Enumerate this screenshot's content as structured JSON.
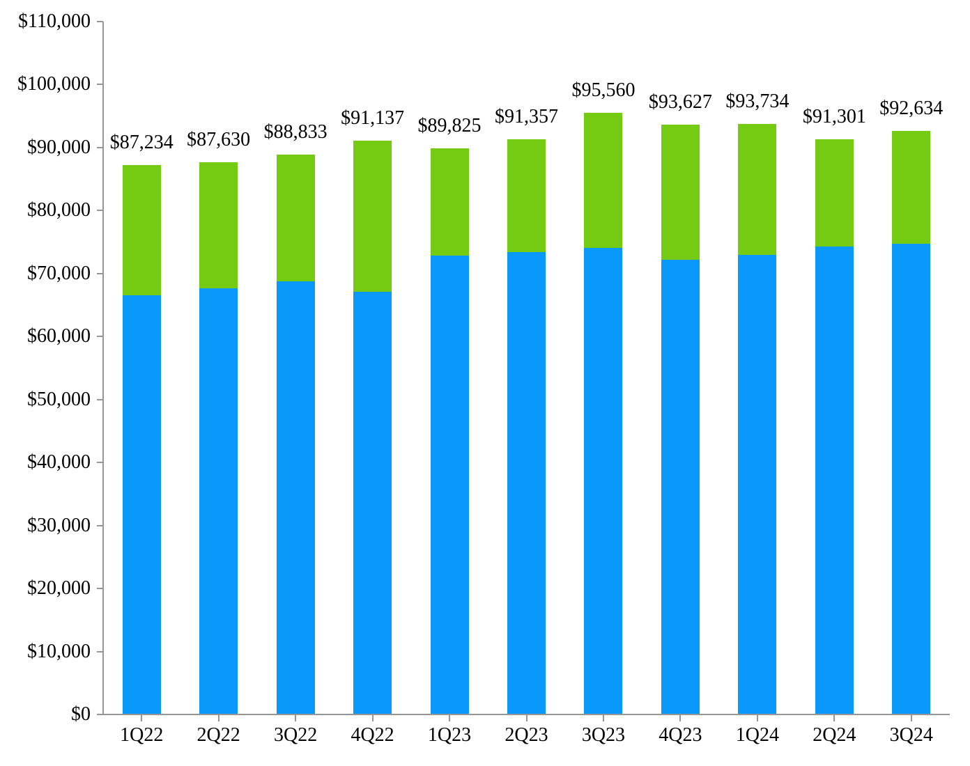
{
  "chart_data": {
    "type": "bar",
    "subtype": "stacked-column",
    "title": "",
    "xlabel": "",
    "ylabel": "",
    "categories": [
      "1Q22",
      "2Q22",
      "3Q22",
      "4Q22",
      "1Q23",
      "2Q23",
      "3Q23",
      "4Q23",
      "1Q24",
      "2Q24",
      "3Q24"
    ],
    "series": [
      {
        "name": "blue-lower-segment",
        "color": "#0999FA",
        "values": [
          66500,
          67700,
          68800,
          67100,
          72800,
          73400,
          74100,
          72200,
          73000,
          74300,
          74700
        ]
      },
      {
        "name": "green-upper-segment",
        "color": "#74CB11",
        "values": [
          20734,
          19930,
          20033,
          24037,
          17025,
          17957,
          21460,
          21427,
          20734,
          17001,
          17934
        ]
      }
    ],
    "totals": [
      87234,
      87630,
      88833,
      91137,
      89825,
      91357,
      95560,
      93627,
      93734,
      91301,
      92634
    ],
    "total_labels": [
      "$87,234",
      "$87,630",
      "$88,833",
      "$91,137",
      "$89,825",
      "$91,357",
      "$95,560",
      "$93,627",
      "$93,734",
      "$91,301",
      "$92,634"
    ],
    "ylim": [
      0,
      110000
    ],
    "ytick_step": 10000,
    "ytick_labels": [
      "$0",
      "$10,000",
      "$20,000",
      "$30,000",
      "$40,000",
      "$50,000",
      "$60,000",
      "$70,000",
      "$80,000",
      "$90,000",
      "$100,000",
      "$110,000"
    ],
    "grid": false,
    "legend": "none",
    "colors": {
      "axis": "#969696",
      "text": "#000000",
      "background": "#FFFFFF"
    }
  }
}
